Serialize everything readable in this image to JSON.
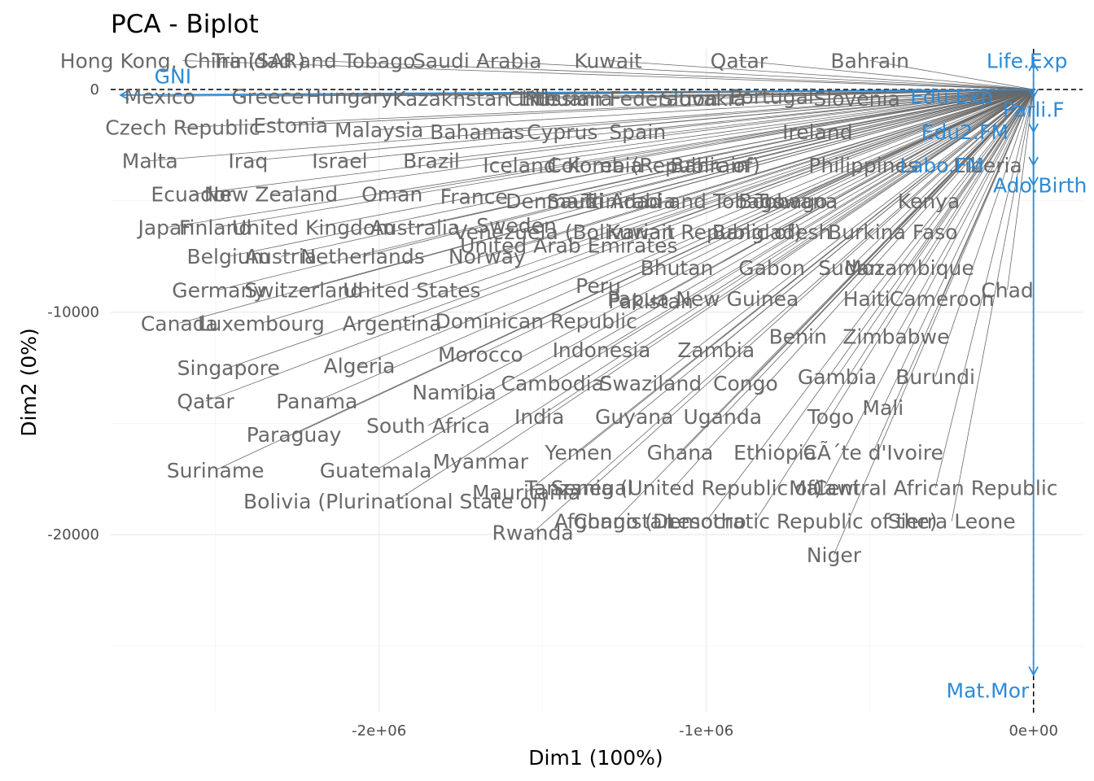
{
  "chart_data": {
    "type": "scatter",
    "title": "PCA - Biplot",
    "xlabel": "Dim1 (100%)",
    "ylabel": "Dim2 (0%)",
    "xlim": [
      -2820000,
      150000
    ],
    "ylim": [
      -28000,
      1830
    ],
    "x_ticks": [
      {
        "value": -2000000,
        "label": "-2e+06"
      },
      {
        "value": -1000000,
        "label": "-1e+06"
      },
      {
        "value": 0,
        "label": "0e+00"
      }
    ],
    "y_ticks": [
      {
        "value": 0,
        "label": "0"
      },
      {
        "value": -10000,
        "label": "-10000"
      },
      {
        "value": -20000,
        "label": "-20000"
      }
    ],
    "x_minor": [
      -2500000,
      -1500000,
      -500000
    ],
    "y_minor": [
      -5000,
      -15000,
      -25000
    ],
    "grid": true,
    "origin": [
      0,
      0
    ],
    "colors": {
      "individuals": "#696969",
      "variables": "#2e8bd6",
      "reference": "#000000"
    },
    "individuals": [
      {
        "label": "Hong Kong, China (SAR)",
        "x": -2600000,
        "y": 1300
      },
      {
        "label": "Trinidad and Tobago",
        "x": -2200000,
        "y": 1300
      },
      {
        "label": "Saudi Arabia",
        "x": -1700000,
        "y": 1300
      },
      {
        "label": "Kuwait",
        "x": -1300000,
        "y": 1300
      },
      {
        "label": "Qatar",
        "x": -900000,
        "y": 1300
      },
      {
        "label": "Bahrain",
        "x": -500000,
        "y": 1300
      },
      {
        "label": "Mexico",
        "x": -2670000,
        "y": -300
      },
      {
        "label": "Greece",
        "x": -2340000,
        "y": -300
      },
      {
        "label": "Hungary",
        "x": -2090000,
        "y": -300
      },
      {
        "label": "Kazakhstan",
        "x": -1780000,
        "y": -400
      },
      {
        "label": "Chile",
        "x": -1530000,
        "y": -400
      },
      {
        "label": "Lithuania",
        "x": -1430000,
        "y": -400
      },
      {
        "label": "Russian Federation",
        "x": -1260000,
        "y": -400
      },
      {
        "label": "Slovakia",
        "x": -1010000,
        "y": -400
      },
      {
        "label": "Portugal",
        "x": -800000,
        "y": -300
      },
      {
        "label": "Slovenia",
        "x": -540000,
        "y": -400
      },
      {
        "label": "Czech Republic",
        "x": -2600000,
        "y": -1700
      },
      {
        "label": "Estonia",
        "x": -2270000,
        "y": -1600
      },
      {
        "label": "Malaysia",
        "x": -2000000,
        "y": -1800
      },
      {
        "label": "Bahamas",
        "x": -1700000,
        "y": -1900
      },
      {
        "label": "Cyprus",
        "x": -1440000,
        "y": -1900
      },
      {
        "label": "Spain",
        "x": -1210000,
        "y": -1900
      },
      {
        "label": "Ireland",
        "x": -660000,
        "y": -1900
      },
      {
        "label": "Malta",
        "x": -2700000,
        "y": -3200
      },
      {
        "label": "Iraq",
        "x": -2400000,
        "y": -3200
      },
      {
        "label": "Israel",
        "x": -2120000,
        "y": -3200
      },
      {
        "label": "Brazil",
        "x": -1840000,
        "y": -3200
      },
      {
        "label": "Iceland",
        "x": -1570000,
        "y": -3400
      },
      {
        "label": "Colombia",
        "x": -1340000,
        "y": -3400
      },
      {
        "label": "Korea (Republic of)",
        "x": -1130000,
        "y": -3400
      },
      {
        "label": "Bahrain",
        "x": -990000,
        "y": -3400
      },
      {
        "label": "Philippines",
        "x": -520000,
        "y": -3400
      },
      {
        "label": "Liberia",
        "x": -140000,
        "y": -3400
      },
      {
        "label": "Ecuador",
        "x": -2570000,
        "y": -4700
      },
      {
        "label": "New Zealand",
        "x": -2330000,
        "y": -4700
      },
      {
        "label": "Oman",
        "x": -1960000,
        "y": -4700
      },
      {
        "label": "France",
        "x": -1710000,
        "y": -4800
      },
      {
        "label": "Denmark",
        "x": -1470000,
        "y": -5000
      },
      {
        "label": "Saudi Arabia",
        "x": -1290000,
        "y": -5000
      },
      {
        "label": "Trinidad and Tobago",
        "x": -1070000,
        "y": -5000
      },
      {
        "label": "Botswana",
        "x": -750000,
        "y": -5000
      },
      {
        "label": "Tobago",
        "x": -740000,
        "y": -5000
      },
      {
        "label": "Kenya",
        "x": -320000,
        "y": -5000
      },
      {
        "label": "Japan",
        "x": -2650000,
        "y": -6200
      },
      {
        "label": "Finland",
        "x": -2500000,
        "y": -6200
      },
      {
        "label": "United Kingdom",
        "x": -2200000,
        "y": -6200
      },
      {
        "label": "Australia",
        "x": -1890000,
        "y": -6200
      },
      {
        "label": "Sweden",
        "x": -1580000,
        "y": -6100
      },
      {
        "label": "Venezuela (Bolivarian Republic of)",
        "x": -1240000,
        "y": -6400
      },
      {
        "label": "Kuwait",
        "x": -1200000,
        "y": -6400
      },
      {
        "label": "Bangladesh",
        "x": -800000,
        "y": -6400
      },
      {
        "label": "Burkina Faso",
        "x": -430000,
        "y": -6400
      },
      {
        "label": "Belgium",
        "x": -2460000,
        "y": -7500
      },
      {
        "label": "Austria",
        "x": -2300000,
        "y": -7500
      },
      {
        "label": "Netherlands",
        "x": -2050000,
        "y": -7500
      },
      {
        "label": "Norway",
        "x": -1670000,
        "y": -7500
      },
      {
        "label": "United Arab Emirates",
        "x": -1420000,
        "y": -7000
      },
      {
        "label": "Bhutan",
        "x": -1090000,
        "y": -8000
      },
      {
        "label": "Gabon",
        "x": -800000,
        "y": -8000
      },
      {
        "label": "Sudan",
        "x": -560000,
        "y": -8000
      },
      {
        "label": "Mozambique",
        "x": -380000,
        "y": -8000
      },
      {
        "label": "Peru",
        "x": -1330000,
        "y": -8800
      },
      {
        "label": "Chad",
        "x": -80000,
        "y": -9000
      },
      {
        "label": "Germany",
        "x": -2490000,
        "y": -9000
      },
      {
        "label": "Switzerland",
        "x": -2230000,
        "y": -9000
      },
      {
        "label": "United States",
        "x": -1900000,
        "y": -9000
      },
      {
        "label": "Papua New Guinea",
        "x": -1010000,
        "y": -9400
      },
      {
        "label": "Haiti",
        "x": -510000,
        "y": -9400
      },
      {
        "label": "Cameroon",
        "x": -280000,
        "y": -9400
      },
      {
        "label": "Pakistan",
        "x": -1170000,
        "y": -9500
      },
      {
        "label": "Dominican Republic",
        "x": -1520000,
        "y": -10400
      },
      {
        "label": "Canada",
        "x": -2610000,
        "y": -10500
      },
      {
        "label": "Luxembourg",
        "x": -2360000,
        "y": -10500
      },
      {
        "label": "Argentina",
        "x": -1960000,
        "y": -10500
      },
      {
        "label": "Benin",
        "x": -720000,
        "y": -11100
      },
      {
        "label": "Zimbabwe",
        "x": -420000,
        "y": -11100
      },
      {
        "label": "Indonesia",
        "x": -1320000,
        "y": -11700
      },
      {
        "label": "Zambia",
        "x": -970000,
        "y": -11700
      },
      {
        "label": "Morocco",
        "x": -1690000,
        "y": -11900
      },
      {
        "label": "Singapore",
        "x": -2460000,
        "y": -12500
      },
      {
        "label": "Algeria",
        "x": -2060000,
        "y": -12400
      },
      {
        "label": "Gambia",
        "x": -600000,
        "y": -12900
      },
      {
        "label": "Burundi",
        "x": -300000,
        "y": -12900
      },
      {
        "label": "Cambodia",
        "x": -1470000,
        "y": -13200
      },
      {
        "label": "Swaziland",
        "x": -1170000,
        "y": -13200
      },
      {
        "label": "Congo",
        "x": -880000,
        "y": -13200
      },
      {
        "label": "Namibia",
        "x": -1770000,
        "y": -13600
      },
      {
        "label": "Qatar",
        "x": -2530000,
        "y": -14000
      },
      {
        "label": "Panama",
        "x": -2190000,
        "y": -14000
      },
      {
        "label": "Mali",
        "x": -460000,
        "y": -14300
      },
      {
        "label": "India",
        "x": -1510000,
        "y": -14700
      },
      {
        "label": "Guyana",
        "x": -1220000,
        "y": -14700
      },
      {
        "label": "Uganda",
        "x": -950000,
        "y": -14700
      },
      {
        "label": "Togo",
        "x": -620000,
        "y": -14700
      },
      {
        "label": "South Africa",
        "x": -1850000,
        "y": -15100
      },
      {
        "label": "Paraguay",
        "x": -2260000,
        "y": -15500
      },
      {
        "label": "Yemen",
        "x": -1390000,
        "y": -16300
      },
      {
        "label": "Ghana",
        "x": -1080000,
        "y": -16300
      },
      {
        "label": "Ethiopia",
        "x": -790000,
        "y": -16300
      },
      {
        "label": "CÃ´te d'Ivoire",
        "x": -490000,
        "y": -16300
      },
      {
        "label": "Myanmar",
        "x": -1690000,
        "y": -16700
      },
      {
        "label": "Suriname",
        "x": -2500000,
        "y": -17100
      },
      {
        "label": "Guatemala",
        "x": -2010000,
        "y": -17100
      },
      {
        "label": "Mauritania",
        "x": -1550000,
        "y": -18100
      },
      {
        "label": "Tanzania (United Republic of)",
        "x": -1100000,
        "y": -17900
      },
      {
        "label": "Senegal",
        "x": -1350000,
        "y": -17900
      },
      {
        "label": "Malawi",
        "x": -640000,
        "y": -17900
      },
      {
        "label": "Central African Republic",
        "x": -300000,
        "y": -17900
      },
      {
        "label": "Bolivia (Plurinational State of)",
        "x": -1950000,
        "y": -18500
      },
      {
        "label": "Afghanistan",
        "x": -1280000,
        "y": -19400
      },
      {
        "label": "Congo (Democratic Republic of the)",
        "x": -850000,
        "y": -19400
      },
      {
        "label": "Lesotho",
        "x": -1000000,
        "y": -19400
      },
      {
        "label": "Sierra Leone",
        "x": -250000,
        "y": -19400
      },
      {
        "label": "Rwanda",
        "x": -1530000,
        "y": -19900
      },
      {
        "label": "Niger",
        "x": -610000,
        "y": -20900
      }
    ],
    "variables": [
      {
        "label": "GNI",
        "x": -2790000,
        "y": -250,
        "lx": -2630000,
        "ly": 600
      },
      {
        "label": "Life.Exp",
        "x": 0,
        "y": 1200,
        "lx": -20000,
        "ly": 1300
      },
      {
        "label": "Edu.Exp",
        "x": 0,
        "y": 0,
        "lx": -250000,
        "ly": -300
      },
      {
        "label": "Parli.F",
        "x": 0,
        "y": -350,
        "lx": 0,
        "ly": -900
      },
      {
        "label": "Edu2.FM",
        "x": 0,
        "y": -1900,
        "lx": -210000,
        "ly": -1900
      },
      {
        "label": "Labo.FM",
        "x": 0,
        "y": -3400,
        "lx": -280000,
        "ly": -3400
      },
      {
        "label": "Ado.Birth",
        "x": 0,
        "y": -4300,
        "lx": 20000,
        "ly": -4300
      },
      {
        "label": "Mat.Mor",
        "x": 0,
        "y": -26300,
        "lx": -140000,
        "ly": -27000
      }
    ]
  }
}
